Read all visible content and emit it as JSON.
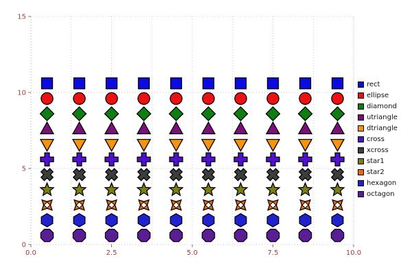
{
  "chart_data": {
    "type": "scatter",
    "title": "",
    "xlabel": "",
    "ylabel": "",
    "xlim": [
      0,
      10
    ],
    "ylim": [
      0,
      15
    ],
    "xticks": [
      0,
      2.5,
      5,
      7.5,
      10
    ],
    "xtick_labels": [
      "0.0",
      "2.5",
      "5.0",
      "7.5",
      "10.0"
    ],
    "yticks": [
      0,
      5,
      10,
      15
    ],
    "ytick_labels": [
      "0",
      "5",
      "10",
      "15"
    ],
    "x_minor_step": 1.25,
    "grid": true,
    "legend_position": "right",
    "background": "#ffffff",
    "tick_label_color": "#a33c3c",
    "grid_color": "#c8c8c8",
    "marker_outline": "#000000",
    "x": [
      0.5,
      1.5,
      2.5,
      3.5,
      4.5,
      5.5,
      6.5,
      7.5,
      8.5,
      9.5
    ],
    "series": [
      {
        "name": "rect",
        "marker": "rect",
        "color": "#0b0be0",
        "y": 10.6
      },
      {
        "name": "ellipse",
        "marker": "ellipse",
        "color": "#ee1111",
        "y": 9.6
      },
      {
        "name": "diamond",
        "marker": "diamond",
        "color": "#0e7d12",
        "y": 8.6
      },
      {
        "name": "utriangle",
        "marker": "utriangle",
        "color": "#7d0e7d",
        "y": 7.6
      },
      {
        "name": "dtriangle",
        "marker": "dtriangle",
        "color": "#f59410",
        "y": 6.6
      },
      {
        "name": "cross",
        "marker": "cross",
        "color": "#4d12c9",
        "y": 5.6
      },
      {
        "name": "xcross",
        "marker": "xcross",
        "color": "#3d3d3d",
        "y": 4.6
      },
      {
        "name": "star1",
        "marker": "star1",
        "color": "#7d7d13",
        "y": 3.6
      },
      {
        "name": "star2",
        "marker": "star2",
        "color": "#ef6511",
        "y": 2.6
      },
      {
        "name": "hexagon",
        "marker": "hexagon",
        "color": "#2121cf",
        "y": 1.6
      },
      {
        "name": "octagon",
        "marker": "octagon",
        "color": "#5a1d96",
        "y": 0.6
      }
    ]
  }
}
